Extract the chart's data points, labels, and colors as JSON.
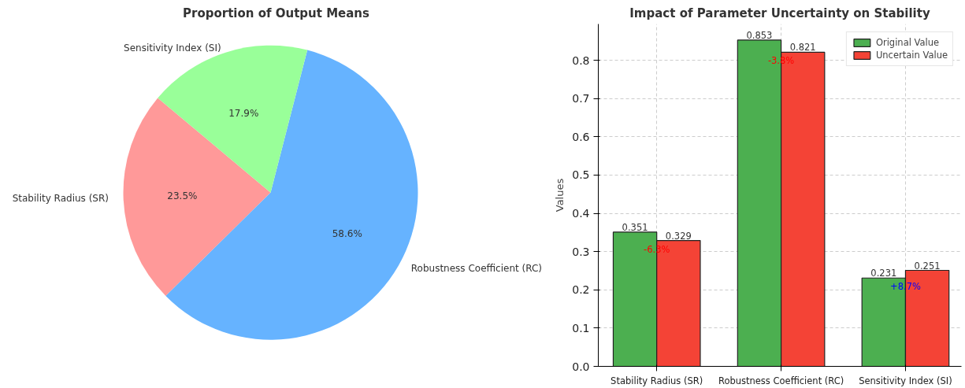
{
  "chart_data": [
    {
      "type": "pie",
      "title": "Proportion of Output Means",
      "categories": [
        "Stability Radius (SR)",
        "Robustness Coefficient (RC)",
        "Sensitivity Index (SI)"
      ],
      "values": [
        23.5,
        58.6,
        17.9
      ],
      "colors": [
        "#ff9999",
        "#66b3ff",
        "#99ff99"
      ],
      "value_labels": [
        "23.5%",
        "58.6%",
        "17.9%"
      ]
    },
    {
      "type": "bar",
      "title": "Impact of Parameter Uncertainty on Stability",
      "ylabel": "Values",
      "categories": [
        "Stability Radius (SR)",
        "Robustness Coefficient (RC)",
        "Sensitivity Index (SI)"
      ],
      "series": [
        {
          "name": "Original Value",
          "color": "#4caf50",
          "values": [
            0.351,
            0.853,
            0.231
          ]
        },
        {
          "name": "Uncertain Value",
          "color": "#f44336",
          "values": [
            0.329,
            0.821,
            0.251
          ]
        }
      ],
      "ylim": [
        0,
        0.895
      ],
      "yticks": [
        {
          "value": 0,
          "label": "0.0"
        },
        0.1,
        0.2,
        0.3,
        0.4,
        0.5,
        0.6,
        0.7,
        0.8
      ],
      "grid": true,
      "legend": "top right",
      "data_labels": true,
      "annotations": [
        {
          "text": "-6.3%",
          "x": "Stability Radius (SR)",
          "y": 0.305
        },
        {
          "text": "-3.8%",
          "x": "Robustness Coefficient (RC)",
          "y": 0.8
        },
        {
          "text": "+8.7%",
          "x": "Sensitivity Index (SI)",
          "y": 0.208
        }
      ]
    }
  ]
}
